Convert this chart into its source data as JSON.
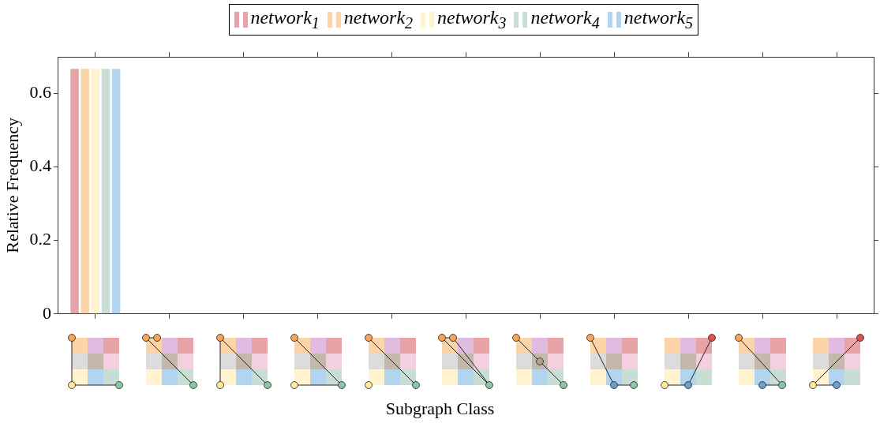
{
  "chart_data": {
    "type": "bar",
    "xlabel": "Subgraph Class",
    "ylabel": "Relative Frequency",
    "categories": [
      null,
      null,
      null,
      null,
      null,
      null,
      null,
      null,
      null,
      null,
      null
    ],
    "series": [
      {
        "name": "network$_{1}$",
        "color": "#e8a3a6",
        "values": [
          0.667,
          0,
          0,
          0,
          0,
          0,
          0,
          0,
          0,
          0,
          0
        ]
      },
      {
        "name": "network$_{2}$",
        "color": "#fdd4a8",
        "values": [
          0.667,
          0,
          0,
          0,
          0,
          0,
          0,
          0,
          0,
          0,
          0
        ]
      },
      {
        "name": "network$_{3}$",
        "color": "#fff4cf",
        "values": [
          0.667,
          0,
          0,
          0,
          0,
          0,
          0,
          0,
          0,
          0,
          0
        ]
      },
      {
        "name": "network$_{4}$",
        "color": "#c8ddd4",
        "values": [
          0.667,
          0,
          0,
          0,
          0,
          0,
          0,
          0,
          0,
          0,
          0
        ]
      },
      {
        "name": "network$_{5}$",
        "color": "#b3d4ef",
        "values": [
          0.667,
          0,
          0,
          0,
          0,
          0,
          0,
          0,
          0,
          0,
          0
        ]
      }
    ],
    "ylim": [
      0,
      0.7
    ],
    "yticks": [
      0,
      0.2,
      0.4,
      0.6
    ],
    "grid": false,
    "legend": "top"
  }
}
